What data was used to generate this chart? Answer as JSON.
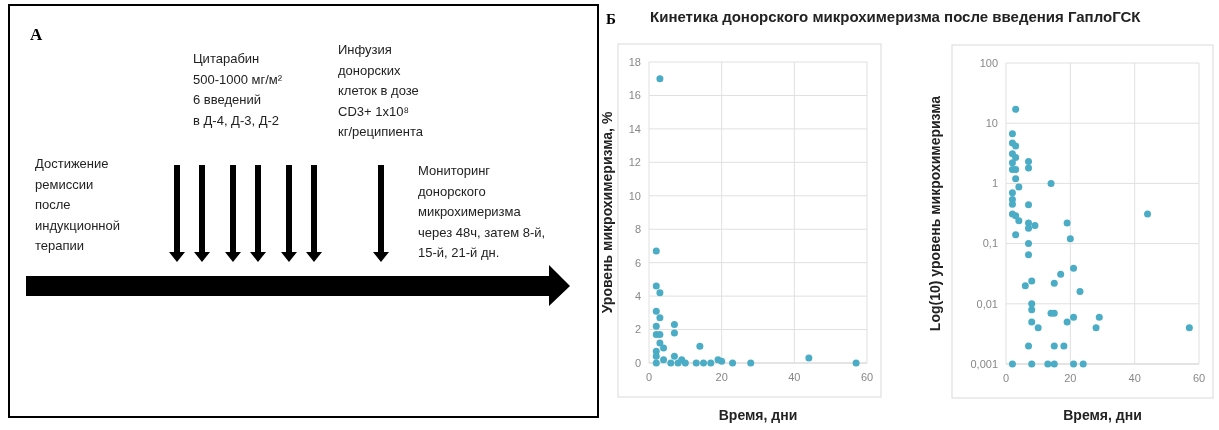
{
  "chart_data": [
    {
      "type": "other",
      "title": "А",
      "annotations": [
        "Достижение\nремиссии\nпосле\nиндукционной\nтерапии",
        "Цитарабин\n500-1000 мг/м²\n6 введений\nв Д-4, Д-3, Д-2",
        "Инфузия\nдонорских\nклеток в дозе\nCD3+ 1x10⁸\nкг/реципиента",
        "Мониторинг\nдонорского\nмикрохимеризма\nчерез 48ч, затем 8-й,\n15-й, 21-й дн."
      ]
    },
    {
      "type": "scatter",
      "title": "Кинетика донорского микрохимеризма после введения ГаплоГСК",
      "annotations": [
        "Б"
      ],
      "xlabel": "Время, дни",
      "ylabel": "Уровень микрохимеризма, %",
      "xlim": [
        0,
        60
      ],
      "xticks": [
        0,
        20,
        40,
        60
      ],
      "ylim": [
        0,
        18
      ],
      "yticks": [
        0,
        2,
        4,
        6,
        8,
        10,
        12,
        14,
        16,
        18
      ],
      "grid": true,
      "marker": "circle",
      "series": [
        {
          "color": "#4bacc6",
          "x": [
            3,
            2,
            2,
            3,
            2,
            3,
            2,
            7,
            7,
            2,
            3,
            3,
            4,
            14,
            2,
            2,
            7,
            4,
            9,
            19,
            20,
            44,
            2,
            6,
            8,
            10,
            13,
            15,
            17,
            23,
            28,
            57
          ],
          "values": [
            17,
            6.7,
            4.6,
            4.2,
            3.1,
            2.7,
            2.2,
            2.3,
            1.8,
            1.7,
            1.7,
            1.2,
            0.9,
            1.0,
            0.7,
            0.4,
            0.4,
            0.2,
            0.2,
            0.2,
            0.1,
            0.3,
            0,
            0,
            0,
            0,
            0,
            0,
            0,
            0,
            0,
            0
          ]
        }
      ]
    },
    {
      "type": "scatter",
      "xlabel": "Время, дни",
      "ylabel": "Log(10) уровень микрохимеризма",
      "xlim": [
        0,
        60
      ],
      "xticks": [
        0,
        20,
        40,
        60
      ],
      "ylim": [
        0.001,
        100
      ],
      "yticks": [
        {
          "value": 0.001,
          "label": "0,001"
        },
        {
          "value": 0.01,
          "label": "0,01"
        },
        {
          "value": 0.1,
          "label": "0,1"
        },
        1,
        10,
        100
      ],
      "log": true,
      "grid": true,
      "marker": "circle",
      "series": [
        {
          "color": "#4bacc6",
          "x": [
            3,
            2,
            2,
            3,
            2,
            3,
            2,
            7,
            7,
            2,
            3,
            3,
            4,
            14,
            2,
            2,
            2,
            7,
            2,
            3,
            4,
            7,
            7,
            9,
            3,
            19,
            20,
            44,
            7,
            7,
            21,
            17,
            8,
            15,
            6,
            23,
            8,
            8,
            14,
            15,
            21,
            29,
            8,
            19,
            10,
            28,
            57,
            7,
            15,
            18,
            2,
            8,
            13,
            15,
            21,
            24
          ],
          "values": [
            17,
            6.7,
            4.7,
            4.2,
            3.1,
            2.7,
            2.2,
            2.3,
            1.8,
            1.7,
            1.7,
            1.2,
            0.87,
            1.0,
            0.7,
            0.54,
            0.45,
            0.44,
            0.31,
            0.29,
            0.24,
            0.22,
            0.18,
            0.2,
            0.14,
            0.22,
            0.12,
            0.31,
            0.1,
            0.065,
            0.039,
            0.031,
            0.024,
            0.022,
            0.02,
            0.016,
            0.01,
            0.008,
            0.007,
            0.007,
            0.006,
            0.006,
            0.005,
            0.005,
            0.004,
            0.004,
            0.004,
            0.002,
            0.002,
            0.002,
            0.001,
            0.001,
            0.001,
            0.001,
            0.001,
            0.001
          ]
        }
      ]
    }
  ]
}
